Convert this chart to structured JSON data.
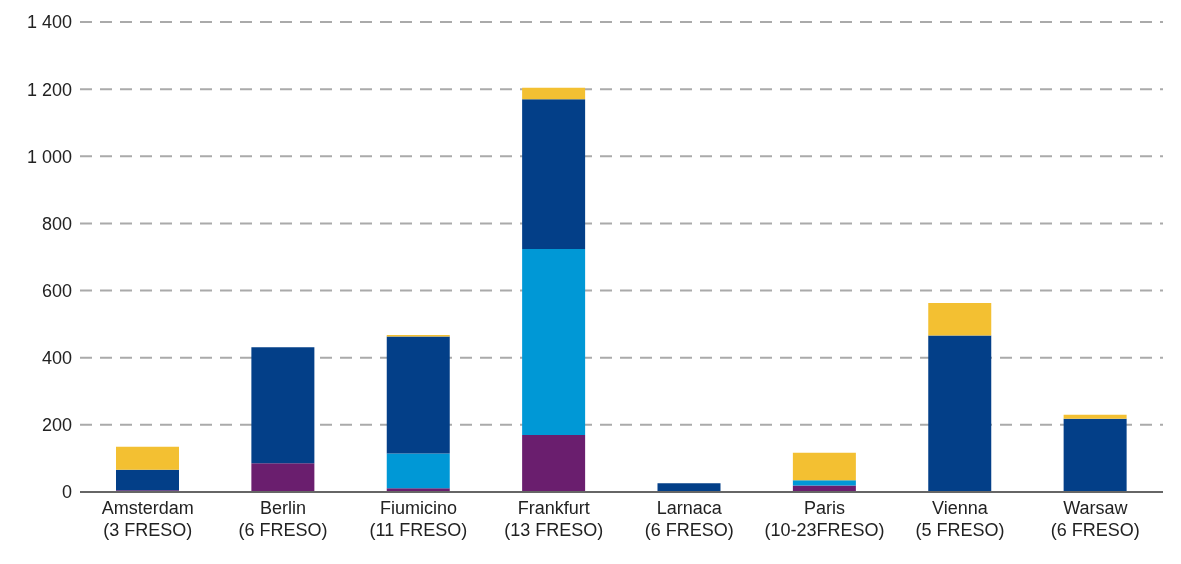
{
  "chart_data": {
    "type": "bar",
    "stacked": true,
    "categories": [
      "Amsterdam\n(3 FRESO)",
      "Berlin\n(6 FRESO)",
      "Fiumicino\n(11 FRESO)",
      "Frankfurt\n(13 FRESO)",
      "Larnaca\n(6 FRESO)",
      "Paris\n(10-23FRESO)",
      "Vienna\n(5 FRESO)",
      "Warsaw\n(6 FRESO)"
    ],
    "series": [
      {
        "color": "#6a1e6e",
        "values": [
          5,
          86,
          11,
          170,
          2,
          19,
          3,
          3
        ]
      },
      {
        "color": "#0098d6",
        "values": [
          0,
          0,
          104,
          554,
          0,
          16,
          0,
          0
        ]
      },
      {
        "color": "#033f88",
        "values": [
          61,
          345,
          348,
          446,
          24,
          0,
          463,
          215
        ]
      },
      {
        "color": "#f3c032",
        "values": [
          69,
          0,
          5,
          34,
          0,
          82,
          97,
          12
        ]
      }
    ],
    "ylim": [
      0,
      1400
    ],
    "yticks": [
      0,
      200,
      400,
      600,
      800,
      {
        "value": 1000,
        "label": "1 000"
      },
      {
        "value": 1200,
        "label": "1 200"
      },
      {
        "value": 1400,
        "label": "1 400"
      }
    ],
    "grid": "y",
    "legend": false
  }
}
